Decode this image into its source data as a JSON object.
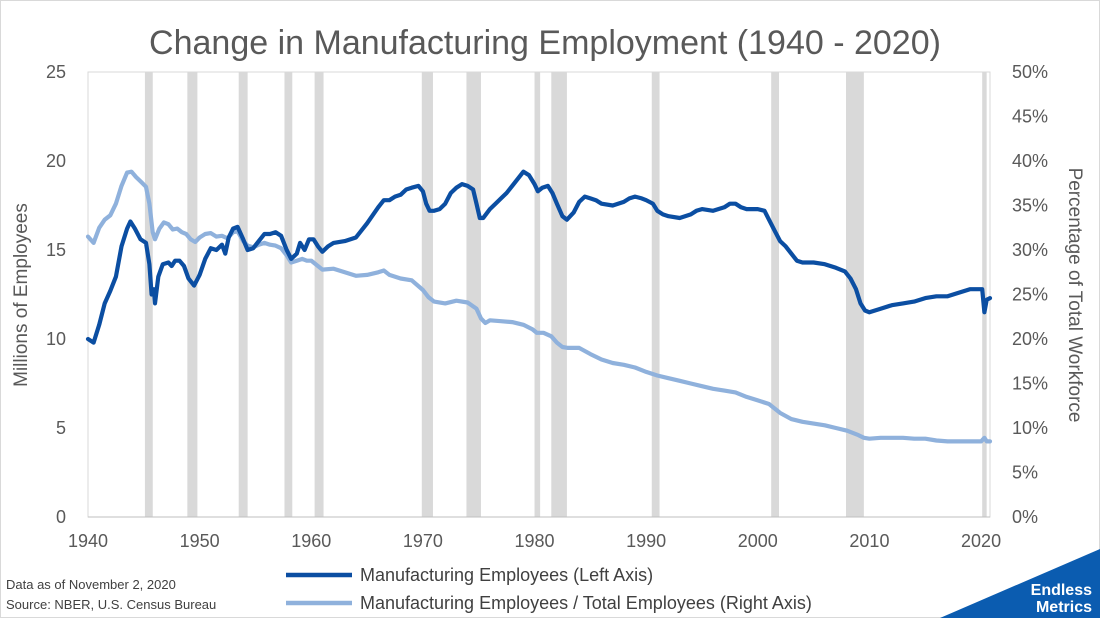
{
  "chart_data": {
    "type": "line",
    "title": "Change in Manufacturing Employment (1940 - 2020)",
    "xlabel": "",
    "ylabel": "Millions of Employees",
    "y2label": "Percentage of Total Workforce",
    "xlim": [
      1940,
      2020.8
    ],
    "ylim": [
      0,
      25
    ],
    "y2lim": [
      0,
      50
    ],
    "x_ticks": [
      1940,
      1950,
      1960,
      1970,
      1980,
      1990,
      2000,
      2010,
      2020
    ],
    "y_ticks": [
      0,
      5,
      10,
      15,
      20,
      25
    ],
    "y2_ticks": [
      "0%",
      "5%",
      "10%",
      "15%",
      "20%",
      "25%",
      "30%",
      "35%",
      "40%",
      "45%",
      "50%"
    ],
    "grid": false,
    "legend_position": "bottom",
    "recessions": [
      [
        1945.1,
        1945.8
      ],
      [
        1948.9,
        1949.8
      ],
      [
        1953.5,
        1954.3
      ],
      [
        1957.6,
        1958.3
      ],
      [
        1960.3,
        1961.1
      ],
      [
        1969.9,
        1970.9
      ],
      [
        1973.9,
        1975.2
      ],
      [
        1980.0,
        1980.5
      ],
      [
        1981.5,
        1982.9
      ],
      [
        1990.5,
        1991.2
      ],
      [
        2001.2,
        2001.9
      ],
      [
        2007.9,
        2009.5
      ],
      [
        2020.1,
        2020.5
      ]
    ],
    "series": [
      {
        "name": "Manufacturing Employees (Left Axis)",
        "axis": "left",
        "color": "#0b4ea2",
        "points": [
          [
            1940.0,
            10.0
          ],
          [
            1940.5,
            9.8
          ],
          [
            1941.0,
            10.8
          ],
          [
            1941.5,
            12.0
          ],
          [
            1942.0,
            12.7
          ],
          [
            1942.5,
            13.5
          ],
          [
            1943.0,
            15.2
          ],
          [
            1943.5,
            16.2
          ],
          [
            1943.8,
            16.6
          ],
          [
            1944.2,
            16.2
          ],
          [
            1944.7,
            15.6
          ],
          [
            1945.2,
            15.4
          ],
          [
            1945.5,
            14.2
          ],
          [
            1945.7,
            12.5
          ],
          [
            1945.9,
            12.8
          ],
          [
            1946.0,
            12.0
          ],
          [
            1946.3,
            13.5
          ],
          [
            1946.7,
            14.2
          ],
          [
            1947.2,
            14.3
          ],
          [
            1947.5,
            14.1
          ],
          [
            1947.8,
            14.4
          ],
          [
            1948.2,
            14.4
          ],
          [
            1948.6,
            14.1
          ],
          [
            1949.0,
            13.4
          ],
          [
            1949.5,
            13.0
          ],
          [
            1950.0,
            13.6
          ],
          [
            1950.5,
            14.5
          ],
          [
            1951.0,
            15.1
          ],
          [
            1951.5,
            15.0
          ],
          [
            1952.0,
            15.3
          ],
          [
            1952.3,
            14.8
          ],
          [
            1952.6,
            15.7
          ],
          [
            1953.0,
            16.2
          ],
          [
            1953.4,
            16.3
          ],
          [
            1953.9,
            15.6
          ],
          [
            1954.3,
            15.0
          ],
          [
            1954.8,
            15.1
          ],
          [
            1955.3,
            15.5
          ],
          [
            1955.8,
            15.9
          ],
          [
            1956.3,
            15.9
          ],
          [
            1956.8,
            16.0
          ],
          [
            1957.3,
            15.8
          ],
          [
            1957.8,
            15.0
          ],
          [
            1958.2,
            14.5
          ],
          [
            1958.7,
            14.8
          ],
          [
            1959.0,
            15.4
          ],
          [
            1959.4,
            15.0
          ],
          [
            1959.8,
            15.6
          ],
          [
            1960.2,
            15.6
          ],
          [
            1960.6,
            15.2
          ],
          [
            1961.0,
            14.9
          ],
          [
            1961.5,
            15.2
          ],
          [
            1962.0,
            15.4
          ],
          [
            1963.0,
            15.5
          ],
          [
            1964.0,
            15.7
          ],
          [
            1965.0,
            16.5
          ],
          [
            1966.0,
            17.4
          ],
          [
            1966.5,
            17.8
          ],
          [
            1967.0,
            17.8
          ],
          [
            1967.5,
            18.0
          ],
          [
            1968.0,
            18.1
          ],
          [
            1968.5,
            18.4
          ],
          [
            1969.0,
            18.5
          ],
          [
            1969.6,
            18.6
          ],
          [
            1970.0,
            18.3
          ],
          [
            1970.3,
            17.6
          ],
          [
            1970.6,
            17.2
          ],
          [
            1971.0,
            17.2
          ],
          [
            1971.5,
            17.3
          ],
          [
            1972.0,
            17.6
          ],
          [
            1972.5,
            18.2
          ],
          [
            1973.0,
            18.5
          ],
          [
            1973.5,
            18.7
          ],
          [
            1974.0,
            18.6
          ],
          [
            1974.5,
            18.4
          ],
          [
            1974.8,
            17.6
          ],
          [
            1975.1,
            16.8
          ],
          [
            1975.4,
            16.8
          ],
          [
            1976.0,
            17.3
          ],
          [
            1976.5,
            17.6
          ],
          [
            1977.0,
            17.9
          ],
          [
            1977.5,
            18.2
          ],
          [
            1978.0,
            18.6
          ],
          [
            1978.5,
            19.0
          ],
          [
            1979.0,
            19.4
          ],
          [
            1979.5,
            19.2
          ],
          [
            1980.0,
            18.7
          ],
          [
            1980.3,
            18.3
          ],
          [
            1980.7,
            18.5
          ],
          [
            1981.2,
            18.6
          ],
          [
            1981.6,
            18.2
          ],
          [
            1982.0,
            17.6
          ],
          [
            1982.5,
            16.9
          ],
          [
            1982.9,
            16.7
          ],
          [
            1983.5,
            17.1
          ],
          [
            1984.0,
            17.7
          ],
          [
            1984.5,
            18.0
          ],
          [
            1985.0,
            17.9
          ],
          [
            1985.5,
            17.8
          ],
          [
            1986.0,
            17.6
          ],
          [
            1987.0,
            17.5
          ],
          [
            1988.0,
            17.7
          ],
          [
            1988.5,
            17.9
          ],
          [
            1989.0,
            18.0
          ],
          [
            1989.6,
            17.9
          ],
          [
            1990.0,
            17.8
          ],
          [
            1990.6,
            17.6
          ],
          [
            1991.0,
            17.2
          ],
          [
            1991.5,
            17.0
          ],
          [
            1992.0,
            16.9
          ],
          [
            1993.0,
            16.8
          ],
          [
            1994.0,
            17.0
          ],
          [
            1994.5,
            17.2
          ],
          [
            1995.0,
            17.3
          ],
          [
            1996.0,
            17.2
          ],
          [
            1997.0,
            17.4
          ],
          [
            1997.5,
            17.6
          ],
          [
            1998.0,
            17.6
          ],
          [
            1998.5,
            17.4
          ],
          [
            1999.0,
            17.3
          ],
          [
            2000.0,
            17.3
          ],
          [
            2000.6,
            17.2
          ],
          [
            2001.0,
            16.7
          ],
          [
            2001.5,
            16.1
          ],
          [
            2002.0,
            15.5
          ],
          [
            2002.5,
            15.2
          ],
          [
            2003.0,
            14.8
          ],
          [
            2003.5,
            14.4
          ],
          [
            2004.0,
            14.3
          ],
          [
            2005.0,
            14.3
          ],
          [
            2006.0,
            14.2
          ],
          [
            2007.0,
            14.0
          ],
          [
            2007.8,
            13.8
          ],
          [
            2008.3,
            13.4
          ],
          [
            2008.8,
            12.8
          ],
          [
            2009.2,
            12.0
          ],
          [
            2009.6,
            11.6
          ],
          [
            2010.0,
            11.5
          ],
          [
            2011.0,
            11.7
          ],
          [
            2012.0,
            11.9
          ],
          [
            2013.0,
            12.0
          ],
          [
            2014.0,
            12.1
          ],
          [
            2015.0,
            12.3
          ],
          [
            2016.0,
            12.4
          ],
          [
            2017.0,
            12.4
          ],
          [
            2018.0,
            12.6
          ],
          [
            2019.0,
            12.8
          ],
          [
            2019.8,
            12.8
          ],
          [
            2020.1,
            12.8
          ],
          [
            2020.3,
            11.5
          ],
          [
            2020.5,
            12.2
          ],
          [
            2020.8,
            12.3
          ]
        ]
      },
      {
        "name": "Manufacturing Employees / Total Employees (Right Axis)",
        "axis": "right",
        "color": "#8fb1dc",
        "points": [
          [
            1940.0,
            31.5
          ],
          [
            1940.5,
            30.8
          ],
          [
            1941.0,
            32.5
          ],
          [
            1941.5,
            33.4
          ],
          [
            1942.0,
            33.9
          ],
          [
            1942.5,
            35.2
          ],
          [
            1943.0,
            37.2
          ],
          [
            1943.5,
            38.7
          ],
          [
            1943.9,
            38.8
          ],
          [
            1944.3,
            38.2
          ],
          [
            1944.8,
            37.6
          ],
          [
            1945.2,
            37.1
          ],
          [
            1945.5,
            35.2
          ],
          [
            1945.8,
            32.0
          ],
          [
            1946.0,
            31.2
          ],
          [
            1946.4,
            32.4
          ],
          [
            1946.8,
            33.1
          ],
          [
            1947.2,
            32.9
          ],
          [
            1947.6,
            32.3
          ],
          [
            1948.0,
            32.4
          ],
          [
            1948.4,
            32.0
          ],
          [
            1948.8,
            31.8
          ],
          [
            1949.2,
            31.2
          ],
          [
            1949.6,
            30.9
          ],
          [
            1950.0,
            31.4
          ],
          [
            1950.5,
            31.8
          ],
          [
            1951.0,
            31.9
          ],
          [
            1951.5,
            31.5
          ],
          [
            1952.0,
            31.6
          ],
          [
            1952.5,
            31.3
          ],
          [
            1953.0,
            32.0
          ],
          [
            1953.4,
            32.1
          ],
          [
            1953.9,
            31.0
          ],
          [
            1954.3,
            30.5
          ],
          [
            1954.8,
            30.3
          ],
          [
            1955.3,
            30.6
          ],
          [
            1955.8,
            30.8
          ],
          [
            1956.3,
            30.6
          ],
          [
            1956.8,
            30.5
          ],
          [
            1957.3,
            30.2
          ],
          [
            1957.8,
            29.4
          ],
          [
            1958.2,
            28.6
          ],
          [
            1958.7,
            28.8
          ],
          [
            1959.2,
            29.0
          ],
          [
            1959.6,
            28.8
          ],
          [
            1960.0,
            28.8
          ],
          [
            1960.5,
            28.3
          ],
          [
            1961.0,
            27.8
          ],
          [
            1962.0,
            27.9
          ],
          [
            1963.0,
            27.5
          ],
          [
            1964.0,
            27.1
          ],
          [
            1965.0,
            27.2
          ],
          [
            1966.0,
            27.5
          ],
          [
            1966.5,
            27.7
          ],
          [
            1967.0,
            27.2
          ],
          [
            1968.0,
            26.8
          ],
          [
            1969.0,
            26.6
          ],
          [
            1970.0,
            25.5
          ],
          [
            1970.5,
            24.7
          ],
          [
            1971.0,
            24.2
          ],
          [
            1972.0,
            24.0
          ],
          [
            1973.0,
            24.3
          ],
          [
            1974.0,
            24.1
          ],
          [
            1974.8,
            23.4
          ],
          [
            1975.2,
            22.3
          ],
          [
            1975.6,
            21.8
          ],
          [
            1976.0,
            22.1
          ],
          [
            1977.0,
            22.0
          ],
          [
            1978.0,
            21.9
          ],
          [
            1979.0,
            21.6
          ],
          [
            1979.8,
            21.1
          ],
          [
            1980.2,
            20.7
          ],
          [
            1980.8,
            20.7
          ],
          [
            1981.5,
            20.3
          ],
          [
            1982.0,
            19.6
          ],
          [
            1982.5,
            19.1
          ],
          [
            1983.0,
            19.0
          ],
          [
            1984.0,
            19.0
          ],
          [
            1985.0,
            18.3
          ],
          [
            1986.0,
            17.7
          ],
          [
            1987.0,
            17.3
          ],
          [
            1988.0,
            17.1
          ],
          [
            1989.0,
            16.8
          ],
          [
            1990.0,
            16.3
          ],
          [
            1991.0,
            15.9
          ],
          [
            1992.0,
            15.6
          ],
          [
            1993.0,
            15.3
          ],
          [
            1994.0,
            15.0
          ],
          [
            1995.0,
            14.7
          ],
          [
            1996.0,
            14.4
          ],
          [
            1997.0,
            14.2
          ],
          [
            1998.0,
            14.0
          ],
          [
            1999.0,
            13.5
          ],
          [
            2000.0,
            13.1
          ],
          [
            2001.0,
            12.7
          ],
          [
            2002.0,
            11.7
          ],
          [
            2003.0,
            11.0
          ],
          [
            2004.0,
            10.7
          ],
          [
            2005.0,
            10.5
          ],
          [
            2006.0,
            10.3
          ],
          [
            2007.0,
            10.0
          ],
          [
            2008.0,
            9.7
          ],
          [
            2009.0,
            9.2
          ],
          [
            2009.5,
            8.9
          ],
          [
            2010.0,
            8.8
          ],
          [
            2011.0,
            8.9
          ],
          [
            2012.0,
            8.9
          ],
          [
            2013.0,
            8.9
          ],
          [
            2014.0,
            8.8
          ],
          [
            2015.0,
            8.8
          ],
          [
            2016.0,
            8.6
          ],
          [
            2017.0,
            8.5
          ],
          [
            2018.0,
            8.5
          ],
          [
            2019.0,
            8.5
          ],
          [
            2020.0,
            8.5
          ],
          [
            2020.3,
            8.9
          ],
          [
            2020.5,
            8.5
          ],
          [
            2020.8,
            8.5
          ]
        ]
      }
    ]
  },
  "footer": {
    "date_note": "Data as of November 2, 2020",
    "source_note": "Source: NBER, U.S. Census Bureau"
  },
  "logo": {
    "line1": "Endless",
    "line2": "Metrics",
    "color": "#0b5cb0"
  }
}
